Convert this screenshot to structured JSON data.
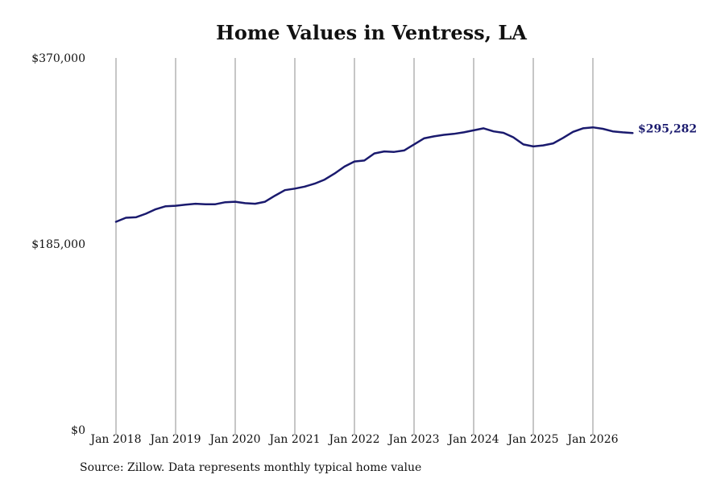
{
  "chart_data": {
    "type": "line",
    "title": "Home Values in Ventress, LA",
    "xlabel": "",
    "ylabel": "",
    "ylim": [
      0,
      370000
    ],
    "xlim": [
      "2018-01",
      "2026-09"
    ],
    "y_ticks": [
      {
        "value": 0,
        "label": "$0"
      },
      {
        "value": 185000,
        "label": "$185,000"
      },
      {
        "value": 370000,
        "label": "$370,000"
      }
    ],
    "x_ticks": [
      {
        "date": "2018-01",
        "label": "Jan 2018"
      },
      {
        "date": "2019-01",
        "label": "Jan 2019"
      },
      {
        "date": "2020-01",
        "label": "Jan 2020"
      },
      {
        "date": "2021-01",
        "label": "Jan 2021"
      },
      {
        "date": "2022-01",
        "label": "Jan 2022"
      },
      {
        "date": "2023-01",
        "label": "Jan 2023"
      },
      {
        "date": "2024-01",
        "label": "Jan 2024"
      },
      {
        "date": "2025-01",
        "label": "Jan 2025"
      },
      {
        "date": "2026-01",
        "label": "Jan 2026"
      }
    ],
    "grid": {
      "vertical": true,
      "horizontal": false
    },
    "line_color": "#1a1a6e",
    "series": [
      {
        "x": [
          "2018-01",
          "2018-03",
          "2018-05",
          "2018-07",
          "2018-09",
          "2018-11",
          "2019-01",
          "2019-03",
          "2019-05",
          "2019-07",
          "2019-09",
          "2019-11",
          "2020-01",
          "2020-03",
          "2020-05",
          "2020-07",
          "2020-09",
          "2020-11",
          "2021-01",
          "2021-03",
          "2021-05",
          "2021-07",
          "2021-09",
          "2021-11",
          "2022-01",
          "2022-03",
          "2022-05",
          "2022-07",
          "2022-09",
          "2022-11",
          "2023-01",
          "2023-03",
          "2023-05",
          "2023-07",
          "2023-09",
          "2023-11",
          "2024-01",
          "2024-03",
          "2024-05",
          "2024-07",
          "2024-09",
          "2024-11",
          "2025-01",
          "2025-03",
          "2025-05",
          "2025-07",
          "2025-09",
          "2025-11",
          "2026-01",
          "2026-03",
          "2026-05",
          "2026-07",
          "2026-09"
        ],
        "y": [
          207000,
          211000,
          211500,
          215000,
          219500,
          222500,
          223000,
          224000,
          225000,
          224500,
          224500,
          226500,
          227000,
          225500,
          225000,
          227000,
          233000,
          238500,
          240000,
          242000,
          245000,
          249000,
          255000,
          262000,
          267000,
          268000,
          275000,
          277000,
          276500,
          278000,
          284000,
          290000,
          292000,
          293500,
          294500,
          296000,
          298000,
          300000,
          297000,
          295500,
          291000,
          284000,
          282000,
          283000,
          285000,
          290500,
          296500,
          300000,
          301000,
          299500,
          297000,
          296000,
          295282
        ]
      }
    ],
    "end_label": "$295,282",
    "source": "Source: Zillow. Data represents monthly typical home value"
  }
}
